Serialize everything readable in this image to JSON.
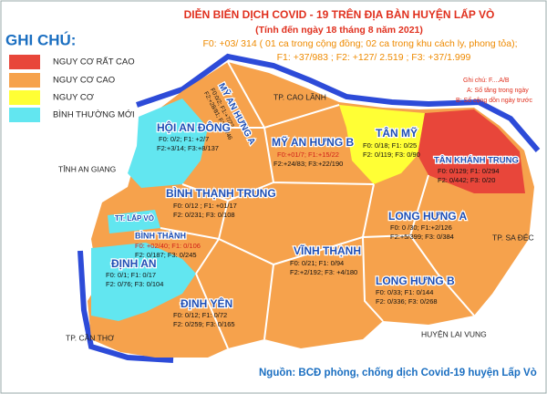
{
  "header": {
    "title": "DIỄN BIẾN DỊCH COVID - 19 TRÊN ĐỊA BÀN HUYỆN LẤP VÒ",
    "subtitle": "(Tính đến ngày 18 tháng 8 năm 2021)",
    "line_f0": "F0: +03/ 314 ( 01 ca trong cộng đồng; 02 ca trong khu cách ly, phong tỏa);",
    "line_f123": "F1: +37/983 ;  F2: +127/ 2.519 ;   F3: +37/1.999"
  },
  "legend": {
    "title": "GHI CHÚ:",
    "items": [
      "NGUY CƠ RẤT CAO",
      "NGUY CƠ CAO",
      "NGUY CƠ",
      "BÌNH THƯỜNG MỚI"
    ]
  },
  "note": {
    "title": "Ghi chú: F....A/B",
    "a": "A: Số tăng trong ngày",
    "b": "B: Số cộng dồn ngày trước"
  },
  "places": [
    "TP. CAO LÃNH",
    "TỈNH AN GIANG",
    "TP. SA ĐÉC",
    "TP. CẦN THƠ",
    "HUYỆN LAI VUNG",
    "TT. LẤP VÒ"
  ],
  "regions": [
    {
      "name": "MỸ AN HƯNG A",
      "line1": "F0:0/2; F1:+7/22",
      "line2": "F2:+28/81; F3:+0/46"
    },
    {
      "name": "HỘI AN ĐÔNG",
      "line1": "F0: 0/2; F1: +2/7",
      "line2": "F2:+3/14; F3:+8/137"
    },
    {
      "name": "MỸ AN HƯNG B",
      "line1": "F0:+01/7; F1:+15/22",
      "line2": "F2:+24/83; F3:+22/190"
    },
    {
      "name": "TÂN MỸ",
      "line1": "F0: 0/18; F1: 0/25",
      "line2": "F2: 0/119; F3: 0/90"
    },
    {
      "name": "TÂN KHÁNH TRUNG",
      "line1": "F0: 0/129; F1: 0/294",
      "line2": "F2: 0/442; F3: 0/20"
    },
    {
      "name": "BÌNH THẠNH TRUNG",
      "line1": "F0: 0/12 ; F1: +01/17",
      "line2": "F2: 0/231; F3: 0/108"
    },
    {
      "name": "BÌNH THÀNH",
      "line1": "F0: +02/40; F1: 0/106",
      "line2": "F2: 0/187; F3: 0/245"
    },
    {
      "name": "LONG HƯNG A",
      "line1": "F0: 0 /30; F1:+2/126",
      "line2": "F2:+5/399; F3: 0/384"
    },
    {
      "name": "VĨNH THẠNH",
      "line1": "F0: 0/21; F1: 0/94",
      "line2": "F2:+2/192; F3: +4/180"
    },
    {
      "name": "ĐỊNH AN",
      "line1": "F0: 0/1; F1: 0/17",
      "line2": "F2: 0/76; F3: 0/104"
    },
    {
      "name": "ĐỊNH YÊN",
      "line1": "F0: 0/12; F1: 0/72",
      "line2": "F2: 0/259; F3: 0/165"
    },
    {
      "name": "LONG HƯNG B",
      "line1": "F0: 0/33; F1: 0/144",
      "line2": "F2: 0/336; F3: 0/268"
    }
  ],
  "source": "Nguồn: BCĐ phòng, chống dịch Covid-19 huyện Lấp Vò"
}
